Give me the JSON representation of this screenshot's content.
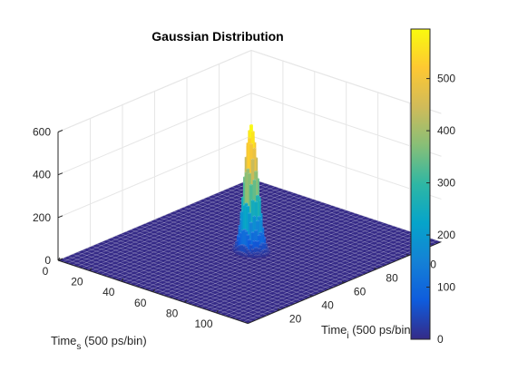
{
  "chart_data": {
    "type": "surface",
    "title": "Gaussian Distribution",
    "xlabel": {
      "base": "Time",
      "sub": "s",
      "rest": " (500 ps/bin)"
    },
    "ylabel": {
      "base": "Time",
      "sub": "i",
      "rest": " (500 ps/bin)"
    },
    "zlabel": "",
    "xlim": [
      0,
      120
    ],
    "ylim": [
      0,
      120
    ],
    "zlim": [
      0,
      600
    ],
    "x_ticks": [
      "0",
      "20",
      "40",
      "60",
      "80",
      "100"
    ],
    "y_ticks": [
      "20",
      "40",
      "60",
      "80",
      "100"
    ],
    "z_ticks": [
      "0",
      "200",
      "400",
      "600"
    ],
    "grid": true,
    "colormap": "parula",
    "colorbar": {
      "visible": true,
      "placement": "right",
      "range": [
        0,
        595
      ],
      "ticks": [
        "0",
        "100",
        "200",
        "300",
        "400",
        "500"
      ]
    },
    "peak": {
      "x": 60,
      "y": 60,
      "z": 590,
      "sigma_x": 3.2,
      "sigma_y": 2.2
    }
  },
  "colors": {
    "background": "#ffffff",
    "axis": "#262626",
    "grid": "#e6e6e6",
    "surface_low": "#352a87",
    "surface_mesh": "#ffffff"
  }
}
